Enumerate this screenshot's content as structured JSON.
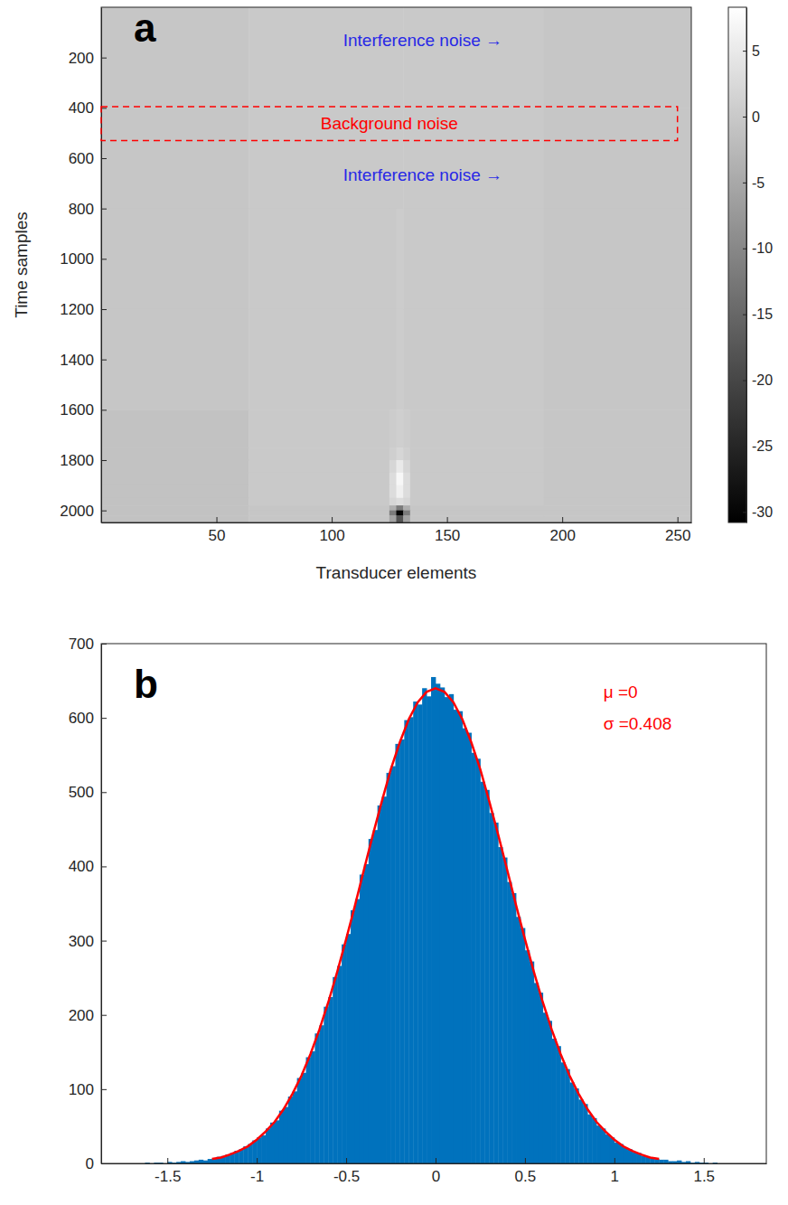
{
  "chart_data": [
    {
      "type": "heatmap",
      "panel_label": "a",
      "x_label": "Transducer elements",
      "y_label": "Time samples",
      "xlim": [
        0,
        256
      ],
      "ylim": [
        2048,
        0
      ],
      "xticks": [
        50,
        100,
        150,
        200,
        250
      ],
      "yticks": [
        200,
        400,
        600,
        800,
        1000,
        1200,
        1400,
        1600,
        1800,
        2000
      ],
      "x_edges": [
        0,
        64,
        125,
        128,
        131,
        134,
        192,
        256
      ],
      "y_edges": [
        0,
        400,
        800,
        1200,
        1600,
        1750,
        1800,
        1850,
        1900,
        1950,
        1980,
        2000,
        2020,
        2048
      ],
      "cells": [
        [
          -0.5,
          0,
          0,
          0,
          0,
          0,
          -0.5
        ],
        [
          -0.5,
          0,
          0,
          0,
          0,
          0,
          -0.5
        ],
        [
          -0.5,
          0,
          0,
          0.5,
          0,
          0,
          -0.5
        ],
        [
          -0.5,
          0,
          0,
          0.5,
          0,
          0,
          -0.5
        ],
        [
          -1,
          0,
          0.5,
          1,
          0.5,
          0,
          -0.5
        ],
        [
          -1,
          0,
          1,
          2,
          1,
          0,
          -0.5
        ],
        [
          -1,
          0,
          2,
          5,
          2,
          0,
          -0.5
        ],
        [
          -1,
          0,
          3,
          7,
          3,
          0,
          -0.5
        ],
        [
          -1,
          0,
          3,
          6,
          3,
          0,
          -0.5
        ],
        [
          -1,
          0,
          2,
          3,
          2,
          0,
          -0.5
        ],
        [
          -1,
          -0.5,
          -4,
          -12,
          -4,
          -0.5,
          -0.5
        ],
        [
          -1,
          -0.5,
          -12,
          -30,
          -12,
          -0.5,
          -0.5
        ],
        [
          -1,
          -0.5,
          -6,
          -18,
          -6,
          -0.5,
          -0.5
        ]
      ],
      "colorbar_lim": [
        -30.8,
        8.3
      ],
      "colorbar_ticks": [
        5,
        0,
        -5,
        -10,
        -15,
        -20,
        -25,
        -30
      ],
      "annotations": [
        {
          "text": "Interference noise →",
          "color": "#2828e6"
        },
        {
          "text": "Background noise",
          "color": "#ff0000",
          "x": [
            0,
            250
          ],
          "y": [
            395,
            530
          ]
        },
        {
          "text": "Interference noise →",
          "color": "#2828e6"
        }
      ]
    },
    {
      "type": "histogram",
      "panel_label": "b",
      "xlim": [
        -1.87,
        1.85
      ],
      "ylim": [
        0,
        700
      ],
      "xticks": [
        -1.5,
        -1,
        -0.5,
        0,
        0.5,
        1,
        1.5
      ],
      "yticks": [
        0,
        100,
        200,
        300,
        400,
        500,
        600,
        700
      ],
      "bins": [
        -1.625,
        -1.6,
        -1.575,
        -1.55,
        -1.525,
        -1.5,
        -1.475,
        -1.45,
        -1.425,
        -1.4,
        -1.375,
        -1.35,
        -1.325,
        -1.3,
        -1.275,
        -1.25,
        -1.225,
        -1.2,
        -1.175,
        -1.15,
        -1.125,
        -1.1,
        -1.075,
        -1.05,
        -1.025,
        -1,
        -0.975,
        -0.95,
        -0.925,
        -0.9,
        -0.875,
        -0.85,
        -0.825,
        -0.8,
        -0.775,
        -0.75,
        -0.725,
        -0.7,
        -0.675,
        -0.65,
        -0.625,
        -0.6,
        -0.575,
        -0.55,
        -0.525,
        -0.5,
        -0.475,
        -0.45,
        -0.425,
        -0.4,
        -0.375,
        -0.35,
        -0.325,
        -0.3,
        -0.275,
        -0.25,
        -0.225,
        -0.2,
        -0.175,
        -0.15,
        -0.125,
        -0.1,
        -0.075,
        -0.05,
        -0.025,
        0,
        0.025,
        0.05,
        0.075,
        0.1,
        0.125,
        0.15,
        0.175,
        0.2,
        0.225,
        0.25,
        0.275,
        0.3,
        0.325,
        0.35,
        0.375,
        0.4,
        0.425,
        0.45,
        0.475,
        0.5,
        0.525,
        0.55,
        0.575,
        0.6,
        0.625,
        0.65,
        0.675,
        0.7,
        0.725,
        0.75,
        0.775,
        0.8,
        0.825,
        0.85,
        0.875,
        0.9,
        0.925,
        0.95,
        0.975,
        1,
        1.025,
        1.05,
        1.075,
        1.1,
        1.125,
        1.15,
        1.175,
        1.2,
        1.225,
        1.25,
        1.275,
        1.3,
        1.325,
        1.35,
        1.375,
        1.4,
        1.425,
        1.45,
        1.475,
        1.5,
        1.525,
        1.55,
        1.575,
        1.6,
        1.625
      ],
      "values": [
        1,
        0,
        1,
        1,
        0,
        2,
        1,
        2,
        3,
        2,
        3,
        4,
        5,
        4,
        6,
        7,
        9,
        10,
        12,
        14,
        17,
        19,
        23,
        26,
        31,
        35,
        38,
        47,
        55,
        58,
        71,
        76,
        90,
        97,
        115,
        122,
        143,
        151,
        175,
        186,
        211,
        224,
        251,
        266,
        295,
        309,
        341,
        356,
        389,
        403,
        437,
        449,
        482,
        494,
        526,
        535,
        565,
        571,
        597,
        601,
        622,
        618,
        640,
        629,
        655,
        646,
        641,
        628,
        632,
        611,
        609,
        586,
        580,
        553,
        545,
        514,
        503,
        472,
        459,
        426,
        412,
        379,
        364,
        332,
        317,
        287,
        272,
        243,
        230,
        203,
        192,
        168,
        158,
        136,
        127,
        109,
        101,
        86,
        80,
        66,
        61,
        51,
        47,
        39,
        35,
        28,
        26,
        21,
        19,
        15,
        14,
        10,
        9,
        7,
        6,
        5,
        5,
        3,
        3,
        4,
        2,
        3,
        1,
        2,
        1,
        1,
        0,
        1,
        0,
        0
      ],
      "color": "#0072bd",
      "fit": {
        "type": "line",
        "color": "#ff0000",
        "x": [
          -1.25,
          -1.2,
          -1.15,
          -1.1,
          -1.05,
          -1,
          -0.95,
          -0.9,
          -0.85,
          -0.8,
          -0.75,
          -0.7,
          -0.65,
          -0.6,
          -0.55,
          -0.5,
          -0.45,
          -0.4,
          -0.35,
          -0.3,
          -0.25,
          -0.2,
          -0.15,
          -0.1,
          -0.05,
          0,
          0.05,
          0.1,
          0.15,
          0.2,
          0.25,
          0.3,
          0.35,
          0.4,
          0.45,
          0.5,
          0.55,
          0.6,
          0.65,
          0.7,
          0.75,
          0.8,
          0.85,
          0.9,
          0.95,
          1,
          1.05,
          1.1,
          1.15,
          1.2,
          1.25
        ],
        "values": [
          6,
          8,
          12,
          17,
          23,
          32,
          43,
          56,
          73,
          94,
          118,
          147,
          180,
          217,
          258,
          302,
          348,
          396,
          443,
          488,
          531,
          567,
          598,
          621,
          635,
          640,
          635,
          621,
          598,
          567,
          531,
          488,
          443,
          396,
          348,
          302,
          258,
          217,
          180,
          147,
          118,
          94,
          73,
          56,
          43,
          32,
          23,
          17,
          12,
          8,
          6
        ]
      },
      "annotations": [
        {
          "text": "μ =0",
          "color": "#ff0000"
        },
        {
          "text": "σ =0.408",
          "color": "#ff0000"
        }
      ]
    }
  ]
}
